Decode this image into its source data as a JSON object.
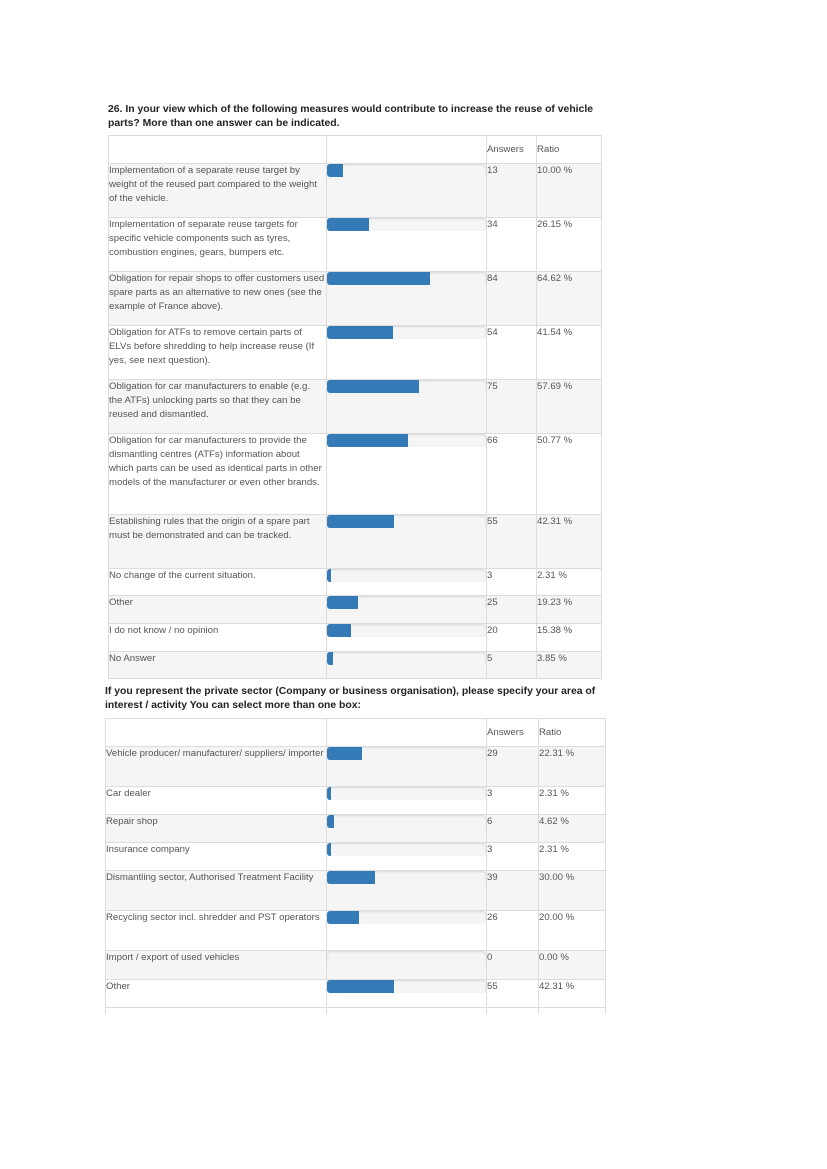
{
  "q1": {
    "title_line1": "26. In your view which of the following measures would contribute to increase the reuse of vehicle",
    "title_line2": "parts? More than one answer can be indicated.",
    "header": {
      "answers": "Answers",
      "ratio": "Ratio"
    },
    "rows": [
      {
        "label": "Implementation of a separate reuse target by weight of the reused part compared to the weight of the vehicle.",
        "answers": "13",
        "ratio": "10.00 %",
        "fraction": 0.1
      },
      {
        "label": "Implementation of separate reuse targets for specific vehicle components such as tyres, combustion engines, gears, bumpers etc.",
        "answers": "34",
        "ratio": "26.15 %",
        "fraction": 0.2615
      },
      {
        "label": "Obligation for repair shops to offer customers used spare parts as an alternative to new ones (see the example of France above).",
        "answers": "84",
        "ratio": "64.62 %",
        "fraction": 0.6462
      },
      {
        "label": "Obligation for ATFs to remove certain parts of ELVs before shredding to help increase reuse (If yes, see next question).",
        "answers": "54",
        "ratio": "41.54 %",
        "fraction": 0.4154
      },
      {
        "label": "Obligation for car manufacturers to enable (e.g. the ATFs) unlocking parts so that they can be reused and dismantled.",
        "answers": "75",
        "ratio": "57.69 %",
        "fraction": 0.5769
      },
      {
        "label": "Obligation for car manufacturers to provide the dismantling centres (ATFs) information about which parts can be used as identical parts in other models of the manufacturer or even other brands.",
        "answers": "66",
        "ratio": "50.77 %",
        "fraction": 0.5077
      },
      {
        "label": "Establishing rules that the origin of a spare part must be demonstrated and can be tracked.",
        "answers": "55",
        "ratio": "42.31 %",
        "fraction": 0.4231
      },
      {
        "label": "No change of the current situation.",
        "answers": "3",
        "ratio": "2.31 %",
        "fraction": 0.0231
      },
      {
        "label": "Other",
        "answers": "25",
        "ratio": "19.23 %",
        "fraction": 0.1923
      },
      {
        "label": "I do not know / no opinion",
        "answers": "20",
        "ratio": "15.38 %",
        "fraction": 0.1538
      },
      {
        "label": "No Answer",
        "answers": "5",
        "ratio": "3.85 %",
        "fraction": 0.0385
      }
    ]
  },
  "q2": {
    "title_line1": "If you represent the private sector (Company or business organisation), please specify your area of",
    "title_line2": "interest / activity You can select more than one box:",
    "header": {
      "answers": "Answers",
      "ratio": "Ratio"
    },
    "rows": [
      {
        "label": "Vehicle producer/ manufacturer/ suppliers/ importer",
        "answers": "29",
        "ratio": "22.31 %",
        "fraction": 0.2231
      },
      {
        "label": "Car dealer",
        "answers": "3",
        "ratio": "2.31 %",
        "fraction": 0.0231
      },
      {
        "label": "Repair shop",
        "answers": "6",
        "ratio": "4.62 %",
        "fraction": 0.0462
      },
      {
        "label": "Insurance company",
        "answers": "3",
        "ratio": "2.31 %",
        "fraction": 0.0231
      },
      {
        "label": "Dismantling sector, Authorised Treatment Facility",
        "answers": "39",
        "ratio": "30.00 %",
        "fraction": 0.3
      },
      {
        "label": "Recycling sector incl. shredder and PST operators",
        "answers": "26",
        "ratio": "20.00 %",
        "fraction": 0.2
      },
      {
        "label": "Import / export of used vehicles",
        "answers": "0",
        "ratio": "0.00 %",
        "fraction": 0.0
      },
      {
        "label": "Other",
        "answers": "55",
        "ratio": "42.31 %",
        "fraction": 0.4231
      }
    ]
  }
}
